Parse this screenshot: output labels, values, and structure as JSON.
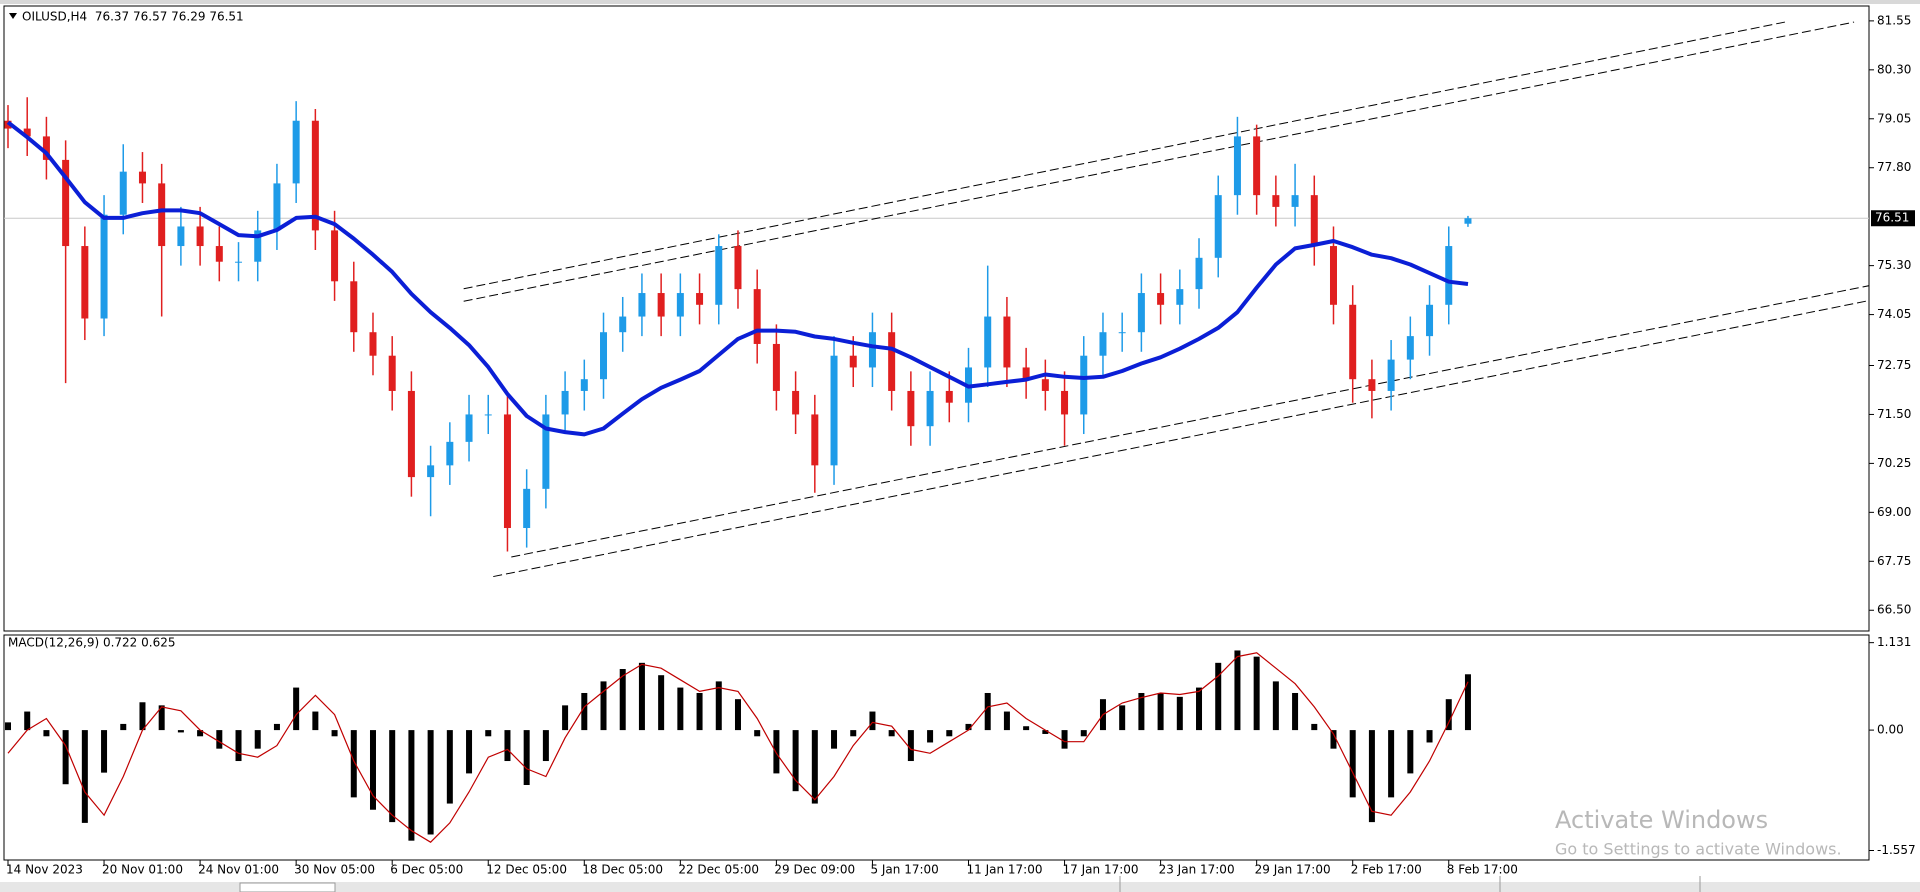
{
  "chart_data": [
    {
      "type": "candlestick",
      "title": "OILUSD,H4  76.37 76.57 76.29 76.51",
      "categories": [
        "14 Nov 2023",
        null,
        null,
        null,
        null,
        "20 Nov 01:00",
        null,
        null,
        null,
        null,
        "24 Nov 01:00",
        null,
        null,
        null,
        null,
        "30 Nov 05:00",
        null,
        null,
        null,
        null,
        "6 Dec 05:00",
        null,
        null,
        null,
        null,
        "12 Dec 05:00",
        null,
        null,
        null,
        null,
        "18 Dec 05:00",
        null,
        null,
        null,
        null,
        "22 Dec 05:00",
        null,
        null,
        null,
        null,
        "29 Dec 09:00",
        null,
        null,
        null,
        null,
        "5 Jan 17:00",
        null,
        null,
        null,
        null,
        "11 Jan 17:00",
        null,
        null,
        null,
        null,
        "17 Jan 17:00",
        null,
        null,
        null,
        null,
        "23 Jan 17:00",
        null,
        null,
        null,
        null,
        "29 Jan 17:00",
        null,
        null,
        null,
        null,
        "2 Feb 17:00",
        null,
        null,
        null,
        null,
        "8 Feb 17:00",
        null
      ],
      "open": [
        79.0,
        78.8,
        78.6,
        78.0,
        75.8,
        73.95,
        76.6,
        77.7,
        77.4,
        75.8,
        76.3,
        75.8,
        75.4,
        75.4,
        76.2,
        77.4,
        79.0,
        76.2,
        74.9,
        73.6,
        73.0,
        72.1,
        69.9,
        70.2,
        70.8,
        71.5,
        71.5,
        68.6,
        69.6,
        71.5,
        72.1,
        72.4,
        73.6,
        74.0,
        74.6,
        74.0,
        74.6,
        74.3,
        75.8,
        74.7,
        73.3,
        72.1,
        71.5,
        70.2,
        73.0,
        72.7,
        73.6,
        72.1,
        71.2,
        72.1,
        71.8,
        72.7,
        74.0,
        72.7,
        72.4,
        72.1,
        71.5,
        73.0,
        73.6,
        73.6,
        74.6,
        74.3,
        74.7,
        75.5,
        77.1,
        78.6,
        77.1,
        76.8,
        77.1,
        75.8,
        74.3,
        72.4,
        72.1,
        72.9,
        73.5,
        74.3,
        76.37
      ],
      "high": [
        79.4,
        79.6,
        79.1,
        78.5,
        76.3,
        77.1,
        78.4,
        78.2,
        77.9,
        76.8,
        76.8,
        76.3,
        75.9,
        76.7,
        77.9,
        79.5,
        79.3,
        76.7,
        75.4,
        74.1,
        73.5,
        72.6,
        70.7,
        71.3,
        72.0,
        72.0,
        72.0,
        70.1,
        72.0,
        72.6,
        72.9,
        74.1,
        74.5,
        75.1,
        75.1,
        75.1,
        75.1,
        76.1,
        76.2,
        75.2,
        73.8,
        72.6,
        72.0,
        73.5,
        73.5,
        74.1,
        74.1,
        72.6,
        72.6,
        72.6,
        73.2,
        75.3,
        74.5,
        73.2,
        72.9,
        72.6,
        73.5,
        74.1,
        74.1,
        75.1,
        75.1,
        75.2,
        76.0,
        77.6,
        79.1,
        78.9,
        77.6,
        77.9,
        77.6,
        76.3,
        74.8,
        72.9,
        73.4,
        74.0,
        74.8,
        76.3,
        76.57
      ],
      "low": [
        78.3,
        78.1,
        77.5,
        72.3,
        73.4,
        73.5,
        76.1,
        76.9,
        74.0,
        75.3,
        75.3,
        74.9,
        74.9,
        74.9,
        75.7,
        76.9,
        75.7,
        74.4,
        73.1,
        72.5,
        71.6,
        69.4,
        68.9,
        69.7,
        70.3,
        71.0,
        68.0,
        68.1,
        69.1,
        71.0,
        71.6,
        71.9,
        73.1,
        73.5,
        73.5,
        73.5,
        73.8,
        73.8,
        74.2,
        72.8,
        71.6,
        71.0,
        69.5,
        69.7,
        72.2,
        72.2,
        71.6,
        70.7,
        70.7,
        71.3,
        71.3,
        72.2,
        72.2,
        71.9,
        71.6,
        70.7,
        71.0,
        72.5,
        73.1,
        73.1,
        73.8,
        73.8,
        74.2,
        75.0,
        76.6,
        76.6,
        76.3,
        76.3,
        75.3,
        73.8,
        71.8,
        71.4,
        71.6,
        72.4,
        73.0,
        73.8,
        76.29
      ],
      "close": [
        78.8,
        78.6,
        78.0,
        75.8,
        73.95,
        76.6,
        77.7,
        77.4,
        75.8,
        76.3,
        75.8,
        75.4,
        75.4,
        76.2,
        77.4,
        79.0,
        76.2,
        74.9,
        73.6,
        73.0,
        72.1,
        69.9,
        70.2,
        70.8,
        71.5,
        71.5,
        68.6,
        69.6,
        71.5,
        72.1,
        72.4,
        73.6,
        74.0,
        74.6,
        74.0,
        74.6,
        74.3,
        75.8,
        74.7,
        73.3,
        72.1,
        71.5,
        70.2,
        73.0,
        72.7,
        73.6,
        72.1,
        71.2,
        72.1,
        71.8,
        72.7,
        74.0,
        72.7,
        72.4,
        72.1,
        71.5,
        73.0,
        73.6,
        73.6,
        74.6,
        74.3,
        74.7,
        75.5,
        77.1,
        78.6,
        77.1,
        76.8,
        77.1,
        75.8,
        74.3,
        72.4,
        72.1,
        72.9,
        73.5,
        74.3,
        75.8,
        76.51
      ],
      "up_color": "#1e9be8",
      "down_color": "#e01f1f",
      "moving_average": {
        "color": "#0b1fd6",
        "values": [
          78.96,
          78.58,
          78.17,
          77.55,
          76.92,
          76.52,
          76.52,
          76.64,
          76.71,
          76.71,
          76.64,
          76.36,
          76.08,
          76.05,
          76.21,
          76.52,
          76.55,
          76.36,
          75.99,
          75.58,
          75.14,
          74.58,
          74.11,
          73.71,
          73.27,
          72.71,
          72.02,
          71.46,
          71.14,
          71.05,
          70.99,
          71.14,
          71.52,
          71.89,
          72.18,
          72.39,
          72.61,
          73.02,
          73.43,
          73.64,
          73.64,
          73.61,
          73.49,
          73.43,
          73.33,
          73.24,
          73.18,
          72.96,
          72.71,
          72.46,
          72.21,
          72.27,
          72.33,
          72.39,
          72.52,
          72.46,
          72.43,
          72.46,
          72.61,
          72.8,
          72.96,
          73.18,
          73.43,
          73.71,
          74.11,
          74.74,
          75.33,
          75.74,
          75.83,
          75.93,
          75.77,
          75.58,
          75.49,
          75.33,
          75.11,
          74.89,
          74.83
        ]
      },
      "trendlines": [
        {
          "x": [
            23.72,
            92.5
          ],
          "y": [
            74.71,
            81.52
          ]
        },
        {
          "x": [
            23.72,
            96.1
          ],
          "y": [
            74.39,
            81.52
          ]
        },
        {
          "x": [
            26.2,
            97.0
          ],
          "y": [
            67.86,
            74.8
          ]
        },
        {
          "x": [
            25.26,
            97.0
          ],
          "y": [
            67.36,
            74.42
          ]
        }
      ],
      "trendline_color": "#000000",
      "current_price": 76.51,
      "ylim": [
        65.97,
        81.93
      ],
      "yticks": [
        {
          "value": 81.55,
          "label": "81.55"
        },
        {
          "value": 80.3,
          "label": "80.30"
        },
        {
          "value": 79.05,
          "label": "79.05"
        },
        {
          "value": 77.8,
          "label": "77.80"
        },
        {
          "value": 75.3,
          "label": "75.30"
        },
        {
          "value": 74.05,
          "label": "74.05"
        },
        {
          "value": 72.75,
          "label": "72.75"
        },
        {
          "value": 71.5,
          "label": "71.50"
        },
        {
          "value": 70.25,
          "label": "70.25"
        },
        {
          "value": 69,
          "label": "69.00"
        },
        {
          "value": 67.75,
          "label": "67.75"
        },
        {
          "value": 66.5,
          "label": "66.50"
        }
      ]
    },
    {
      "type": "macd",
      "title": "MACD(12,26,9) 0.722 0.625",
      "histogram": {
        "color": "#000000",
        "values": [
          0.1,
          0.24,
          -0.08,
          -0.7,
          -1.2,
          -0.55,
          0.08,
          0.36,
          0.32,
          -0.03,
          -0.08,
          -0.24,
          -0.4,
          -0.24,
          0.08,
          0.55,
          0.24,
          -0.08,
          -0.87,
          -1.03,
          -1.19,
          -1.43,
          -1.35,
          -0.95,
          -0.56,
          -0.08,
          -0.4,
          -0.71,
          -0.4,
          0.32,
          0.48,
          0.63,
          0.79,
          0.87,
          0.71,
          0.55,
          0.48,
          0.63,
          0.4,
          -0.08,
          -0.56,
          -0.79,
          -0.95,
          -0.24,
          -0.08,
          0.24,
          -0.08,
          -0.4,
          -0.16,
          -0.08,
          0.08,
          0.48,
          0.24,
          0.05,
          -0.05,
          -0.24,
          -0.08,
          0.4,
          0.32,
          0.48,
          0.48,
          0.43,
          0.55,
          0.87,
          1.03,
          0.95,
          0.63,
          0.48,
          0.08,
          -0.24,
          -0.87,
          -1.19,
          -0.87,
          -0.56,
          -0.16,
          0.4,
          0.722
        ]
      },
      "signal": {
        "color": "#c00000",
        "values": [
          -0.3,
          0.0,
          0.15,
          -0.2,
          -0.8,
          -1.1,
          -0.6,
          0.0,
          0.3,
          0.25,
          0.0,
          -0.15,
          -0.3,
          -0.35,
          -0.2,
          0.2,
          0.45,
          0.2,
          -0.4,
          -0.85,
          -1.1,
          -1.3,
          -1.45,
          -1.2,
          -0.8,
          -0.35,
          -0.25,
          -0.5,
          -0.6,
          -0.1,
          0.3,
          0.5,
          0.7,
          0.85,
          0.8,
          0.65,
          0.5,
          0.55,
          0.5,
          0.15,
          -0.3,
          -0.65,
          -0.9,
          -0.6,
          -0.2,
          0.1,
          0.05,
          -0.25,
          -0.3,
          -0.15,
          0.0,
          0.3,
          0.35,
          0.15,
          0.0,
          -0.15,
          -0.15,
          0.2,
          0.35,
          0.42,
          0.48,
          0.46,
          0.5,
          0.7,
          0.95,
          1.0,
          0.8,
          0.6,
          0.3,
          -0.05,
          -0.55,
          -1.05,
          -1.1,
          -0.8,
          -0.4,
          0.1,
          0.625
        ]
      },
      "ylim": [
        -1.68,
        1.23
      ],
      "yticks": [
        1.131,
        {
          "value": 0,
          "label": "0.00"
        },
        -1.557
      ]
    }
  ],
  "watermark": {
    "title": "Activate Windows",
    "subtitle": "Go to Settings to activate Windows."
  }
}
